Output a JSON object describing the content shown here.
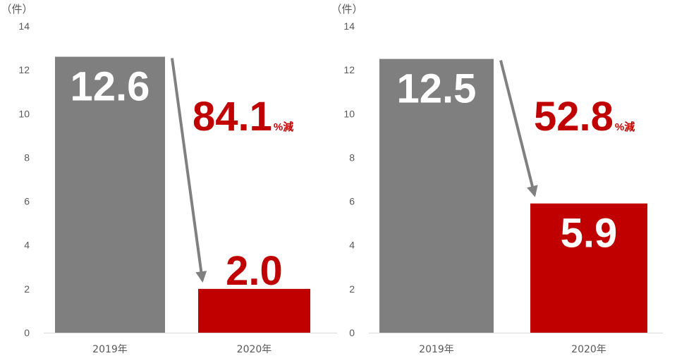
{
  "colors": {
    "bar_2019": "#7f7f7f",
    "bar_2020": "#c00000",
    "text_red": "#c00000",
    "axis_text": "#595959",
    "axis_line": "#d9d9d9",
    "arrow": "#808080",
    "bar_label_inside": "#ffffff"
  },
  "chart_data": [
    {
      "type": "bar",
      "unit_label": "（件）",
      "categories": [
        "2019年",
        "2020年"
      ],
      "values": [
        12.6,
        2.0
      ],
      "value_labels": [
        "12.6",
        "2.0"
      ],
      "ylim": [
        0,
        14
      ],
      "yticks": [
        "0",
        "2",
        "4",
        "6",
        "8",
        "10",
        "12",
        "14"
      ],
      "change": {
        "value": "84.1",
        "suffix": "%減"
      },
      "grid": false
    },
    {
      "type": "bar",
      "unit_label": "（件）",
      "categories": [
        "2019年",
        "2020年"
      ],
      "values": [
        12.5,
        5.9
      ],
      "value_labels": [
        "12.5",
        "5.9"
      ],
      "ylim": [
        0,
        14
      ],
      "yticks": [
        "0",
        "2",
        "4",
        "6",
        "8",
        "10",
        "12",
        "14"
      ],
      "change": {
        "value": "52.8",
        "suffix": "%減"
      },
      "grid": false
    }
  ]
}
